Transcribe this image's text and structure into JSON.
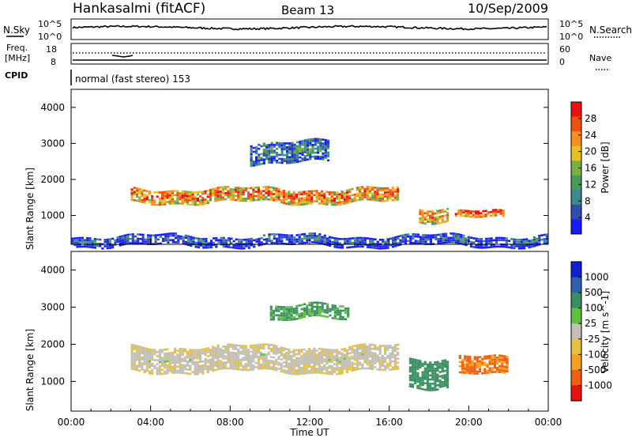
{
  "header": {
    "station": "Hankasalmi (fitACF)",
    "beam": "Beam 13",
    "date": "10/Sep/2009"
  },
  "top_panels": {
    "nsky_label": "N.Sky",
    "nsearch_label": "N.Search",
    "nsky_ticks": [
      "10^5",
      "10^0"
    ],
    "nsearch_ticks": [
      "10^5",
      "10^0"
    ],
    "freq_label_1": "Freq.",
    "freq_label_2": "[MHz]",
    "freq_ticks": [
      "18",
      "8"
    ],
    "nave_label": "Nave",
    "nave_ticks": [
      "60",
      "0"
    ],
    "cpid_label": "CPID",
    "cpid_text": "normal (fast stereo) 153"
  },
  "axes": {
    "ylabel": "Slant Range [km]",
    "yticks": [
      "1000",
      "2000",
      "3000",
      "4000"
    ],
    "xticks": [
      "00:00",
      "04:00",
      "08:00",
      "12:00",
      "16:00",
      "20:00",
      "00:00"
    ],
    "xlabel": "Time UT"
  },
  "colors": {
    "power_scale": [
      "#1a1aff",
      "#2f4fb0",
      "#3b8a8f",
      "#4a9a5a",
      "#7ab040",
      "#e8c020",
      "#f59020",
      "#f05010",
      "#e81010"
    ],
    "velocity_scale": [
      "#1020d0",
      "#2e5fb0",
      "#3a8f60",
      "#60c040",
      "#c0c0b8",
      "#e8c040",
      "#f5a020",
      "#f06010",
      "#e81010"
    ]
  },
  "chart_data": [
    {
      "type": "heatmap",
      "title": "",
      "quantity": "Power",
      "colorbar_label": "Power [dB]",
      "colorbar_ticks": [
        "4",
        "8",
        "12",
        "16",
        "20",
        "24",
        "28"
      ],
      "xlabel": "",
      "ylabel": "Slant Range [km]",
      "xlim": [
        0,
        24
      ],
      "ylim": [
        200,
        4500
      ],
      "regions": [
        {
          "feature": "main F-region band",
          "t_start": 3.0,
          "t_end": 16.5,
          "range_start": 1400,
          "range_end": 1800,
          "value_db": 24
        },
        {
          "feature": "dayside band 1",
          "t_start": 17.5,
          "t_end": 19.0,
          "range_start": 900,
          "range_end": 1300,
          "value_db": 22
        },
        {
          "feature": "dayside band 2",
          "t_start": 19.3,
          "t_end": 21.8,
          "range_start": 950,
          "range_end": 1150,
          "value_db": 26
        },
        {
          "feature": "upper patch",
          "t_start": 9.0,
          "t_end": 13.0,
          "range_start": 2500,
          "range_end": 3100,
          "value_db": 10
        },
        {
          "feature": "near-range scatter",
          "t_start": 0.0,
          "t_end": 24.0,
          "range_start": 200,
          "range_end": 500,
          "value_db": 6
        }
      ]
    },
    {
      "type": "heatmap",
      "title": "",
      "quantity": "Velocity",
      "colorbar_label": "Velocity [m s^-1]",
      "colorbar_ticks": [
        "1000",
        "500",
        "100",
        "25",
        "-25",
        "-100",
        "-500",
        "-1000"
      ],
      "xlabel": "Time UT",
      "ylabel": "Slant Range [km]",
      "xlim": [
        0,
        24
      ],
      "ylim": [
        200,
        4500
      ],
      "regions": [
        {
          "feature": "main ground/slow band",
          "t_start": 3.0,
          "t_end": 16.5,
          "range_start": 1300,
          "range_end": 2000,
          "value_ms": 0
        },
        {
          "feature": "dayside positive flows",
          "t_start": 17.0,
          "t_end": 19.0,
          "range_start": 900,
          "range_end": 1700,
          "value_ms": 150
        },
        {
          "feature": "dayside negative flows",
          "t_start": 19.5,
          "t_end": 22.0,
          "range_start": 1200,
          "range_end": 1700,
          "value_ms": -300
        },
        {
          "feature": "upper positive patch",
          "t_start": 10.0,
          "t_end": 14.0,
          "range_start": 2700,
          "range_end": 3100,
          "value_ms": 120
        }
      ]
    }
  ]
}
